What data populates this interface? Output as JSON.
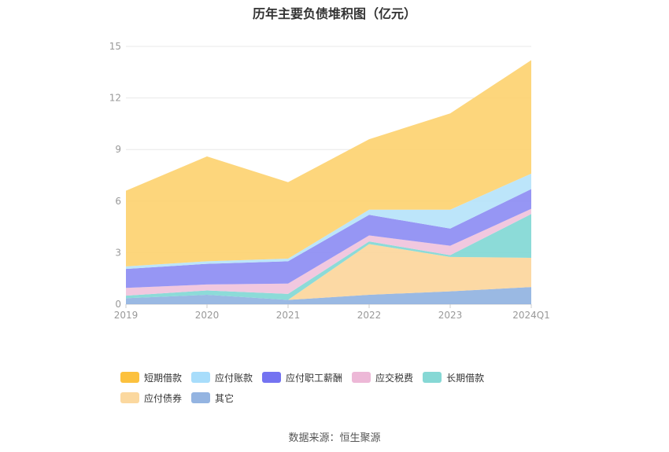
{
  "chart_data": {
    "type": "area",
    "stacked": true,
    "title": "历年主要负债堆积图（亿元）",
    "categories": [
      "2019",
      "2020",
      "2021",
      "2022",
      "2023",
      "2024Q1"
    ],
    "ylim": [
      0,
      15
    ],
    "yticks": [
      0,
      3,
      6,
      9,
      12,
      15
    ],
    "grid": true,
    "legend_position": "bottom",
    "series": [
      {
        "name": "其它",
        "color": "#8fb1e0",
        "values": [
          0.35,
          0.55,
          0.25,
          0.55,
          0.75,
          1.0
        ]
      },
      {
        "name": "应付债券",
        "color": "#fcd59a",
        "values": [
          0.0,
          0.0,
          0.0,
          2.95,
          2.0,
          1.7
        ]
      },
      {
        "name": "长期借款",
        "color": "#7fd7d4",
        "values": [
          0.15,
          0.25,
          0.35,
          0.15,
          0.1,
          2.55
        ]
      },
      {
        "name": "应交税费",
        "color": "#f0c2dc",
        "values": [
          0.45,
          0.35,
          0.6,
          0.35,
          0.55,
          0.3
        ]
      },
      {
        "name": "应付职工薪酬",
        "color": "#8b8bf3",
        "values": [
          1.1,
          1.2,
          1.3,
          1.2,
          1.0,
          1.15
        ]
      },
      {
        "name": "应付账款",
        "color": "#b5e2fa",
        "values": [
          0.15,
          0.15,
          0.15,
          0.3,
          1.1,
          0.9
        ]
      },
      {
        "name": "短期借款",
        "color": "#fdd26e",
        "values": [
          4.4,
          6.1,
          4.45,
          4.1,
          5.6,
          6.6
        ]
      }
    ]
  },
  "legend_order": [
    "短期借款",
    "应付账款",
    "应付职工薪酬",
    "应交税费",
    "长期借款",
    "应付债券",
    "其它"
  ],
  "legend_colors": {
    "短期借款": "#fcc13e",
    "应付账款": "#a8ddfb",
    "应付职工薪酬": "#7473f1",
    "应交税费": "#edb8d7",
    "长期借款": "#86d8d5",
    "应付债券": "#fbd89f",
    "其它": "#94b4e1"
  },
  "source": "数据来源：恒生聚源"
}
